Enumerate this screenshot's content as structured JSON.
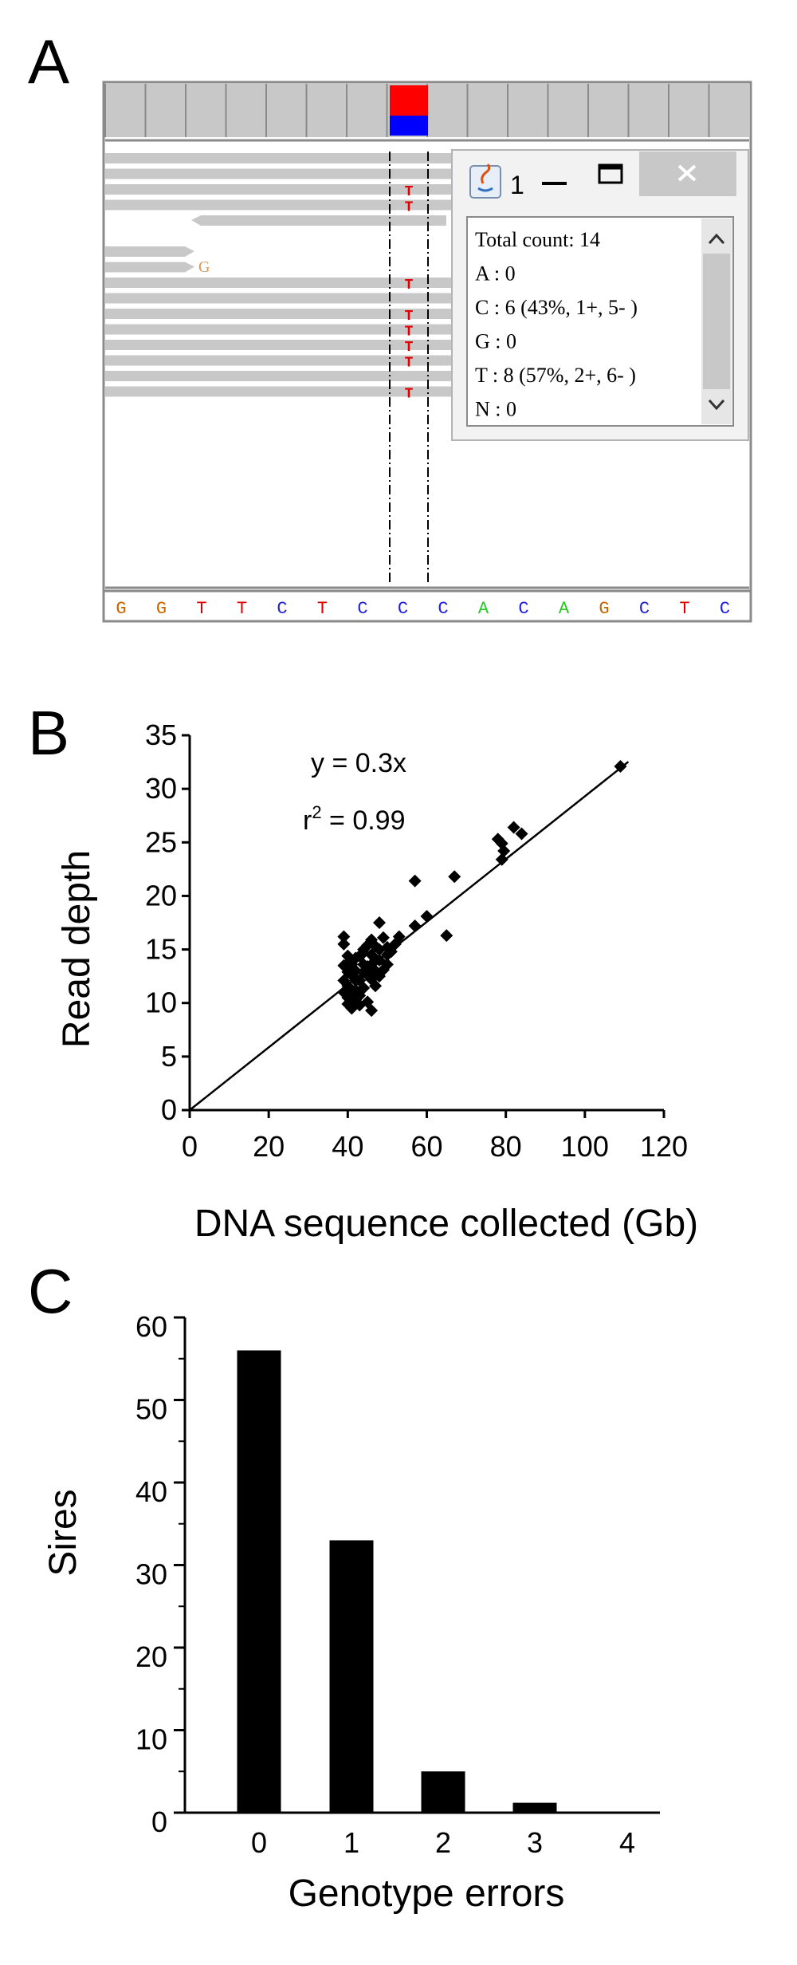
{
  "panels": {
    "a": "A",
    "b": "B",
    "c": "C"
  },
  "genome_viewer": {
    "coverage_colors": {
      "top": "#ff0000",
      "bottom": "#0000ff"
    },
    "read_color": "#c8c8c8",
    "mismatch_reads": [
      {
        "row": 2,
        "base": "T"
      },
      {
        "row": 3,
        "base": "T"
      },
      {
        "row": 8,
        "base": "T"
      },
      {
        "row": 10,
        "base": "T"
      },
      {
        "row": 11,
        "base": "T"
      },
      {
        "row": 12,
        "base": "T"
      },
      {
        "row": 13,
        "base": "T"
      },
      {
        "row": 15,
        "base": "T"
      }
    ],
    "soft_clip_base": "G",
    "reference_sequence": [
      "G",
      "G",
      "T",
      "T",
      "C",
      "T",
      "C",
      "C",
      "C",
      "A",
      "C",
      "A",
      "G",
      "C",
      "T",
      "C"
    ],
    "base_colors": {
      "A": "#22cc22",
      "C": "#1f1fe0",
      "G": "#c86400",
      "T": "#e00000"
    },
    "popup": {
      "title": "1",
      "minimize_icon": "minimize-icon",
      "maximize_icon": "maximize-icon",
      "close_icon": "close-icon",
      "app_icon": "java-icon",
      "lines": [
        "Total count: 14",
        "A : 0",
        "C : 6 (43%, 1+, 5- )",
        "G : 0",
        "T : 8 (57%, 2+, 6- )",
        "N : 0"
      ]
    }
  },
  "chart_data": [
    {
      "type": "scatter",
      "title": "",
      "xlabel": "DNA sequence collected (Gb)",
      "ylabel": "Read depth",
      "xlim": [
        0,
        120
      ],
      "ylim": [
        0,
        35
      ],
      "xticks": [
        "0",
        "20",
        "40",
        "60",
        "80",
        "100",
        "120"
      ],
      "yticks": [
        "0",
        "5",
        "10",
        "15",
        "20",
        "25",
        "30",
        "35"
      ],
      "fit_equation": "y = 0.3x",
      "r2_label_prefix": "r",
      "r2_label_sup": "2",
      "r2_label_suffix": " = 0.99",
      "fit_line": {
        "slope": 0.293,
        "x0": 0,
        "x1": 111
      },
      "points": [
        [
          109,
          32.1
        ],
        [
          84,
          25.8
        ],
        [
          82,
          26.4
        ],
        [
          78,
          25.3
        ],
        [
          79,
          24.9
        ],
        [
          79.5,
          24.2
        ],
        [
          79,
          23.4
        ],
        [
          67,
          21.8
        ],
        [
          57,
          21.4
        ],
        [
          65,
          16.3
        ],
        [
          60,
          18.1
        ],
        [
          57,
          17.2
        ],
        [
          53,
          16.2
        ],
        [
          52,
          15.5
        ],
        [
          51,
          14.8
        ],
        [
          50,
          15.2
        ],
        [
          49,
          16.1
        ],
        [
          48,
          17.5
        ],
        [
          47,
          15.3
        ],
        [
          46,
          14.5
        ],
        [
          45,
          13.4
        ],
        [
          47,
          13.0
        ],
        [
          48,
          14.0
        ],
        [
          50,
          13.6
        ],
        [
          45,
          15.4
        ],
        [
          46,
          15.9
        ],
        [
          44,
          15.0
        ],
        [
          43,
          14.4
        ],
        [
          42,
          13.0
        ],
        [
          41,
          12.6
        ],
        [
          40,
          11.6
        ],
        [
          39,
          12.1
        ],
        [
          39,
          13.5
        ],
        [
          40,
          14.4
        ],
        [
          39,
          15.5
        ],
        [
          39,
          16.2
        ],
        [
          40,
          10.5
        ],
        [
          41,
          9.5
        ],
        [
          40,
          9.9
        ],
        [
          42,
          10.3
        ],
        [
          44,
          11.4
        ],
        [
          45,
          10.1
        ],
        [
          46,
          9.3
        ],
        [
          43,
          12.1
        ],
        [
          44,
          12.9
        ],
        [
          42,
          11.2
        ],
        [
          41,
          13.6
        ],
        [
          40,
          12.9
        ],
        [
          43,
          10.7
        ],
        [
          47,
          11.6
        ],
        [
          48,
          12.5
        ],
        [
          46,
          12.2
        ],
        [
          44,
          13.6
        ],
        [
          41,
          11.0
        ],
        [
          39,
          11.0
        ],
        [
          42,
          14.2
        ],
        [
          45,
          12.6
        ],
        [
          43,
          9.8
        ],
        [
          50,
          14.5
        ],
        [
          48,
          15.0
        ],
        [
          47,
          14.1
        ],
        [
          49,
          13.1
        ],
        [
          46,
          13.6
        ],
        [
          42,
          12.1
        ],
        [
          40,
          13.7
        ],
        [
          44,
          14.7
        ]
      ]
    },
    {
      "type": "bar",
      "title": "",
      "xlabel": "Genotype errors",
      "ylabel": "Sires",
      "categories": [
        "0",
        "1",
        "2",
        "3",
        "4"
      ],
      "values": [
        56,
        33,
        5,
        1.2,
        0
      ],
      "ylim": [
        0,
        60
      ],
      "yticks": [
        "0",
        "10",
        "20",
        "30",
        "40",
        "50",
        "60"
      ],
      "bar_color": "#000000"
    }
  ]
}
